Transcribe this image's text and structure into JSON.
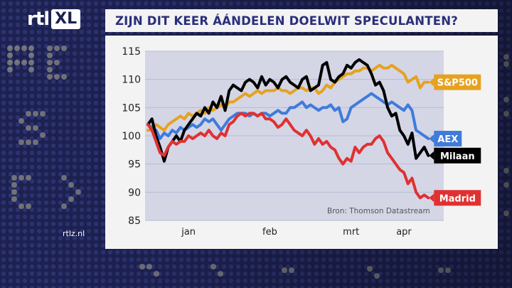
{
  "logo": {
    "text_main": "rtl",
    "text_badge": "XL"
  },
  "title": "ZIJN DIT KEER ÁÁNDELEN DOELWIT SPECULANTEN?",
  "site": "rtlz.nl",
  "colors": {
    "background": "#1d2150",
    "panel": "#f3f3f3",
    "plot": "#d4d6e6",
    "title": "#2a2e7a"
  },
  "chart_data": {
    "type": "line",
    "title": "ZIJN DIT KEER ÁÁNDELEN DOELWIT SPECULANTEN?",
    "source": "Bron: Thomson Datastream",
    "ylim": [
      85,
      115
    ],
    "yticks": [
      85,
      90,
      95,
      100,
      105,
      110,
      115
    ],
    "xlim": [
      0,
      70
    ],
    "month_labels": [
      {
        "label": "jan",
        "x": 10
      },
      {
        "label": "feb",
        "x": 30
      },
      {
        "label": "mrt",
        "x": 50
      },
      {
        "label": "apr",
        "x": 63
      }
    ],
    "grid": true,
    "series": [
      {
        "name": "S&P500",
        "color": "#e6a21f",
        "label_bg": "#e6a21f",
        "label_color": "#ffffff",
        "x": [
          0,
          1,
          2,
          3,
          4,
          5,
          6,
          7,
          8,
          9,
          10,
          11,
          12,
          13,
          14,
          15,
          16,
          17,
          18,
          19,
          20,
          21,
          22,
          23,
          24,
          25,
          26,
          27,
          28,
          29,
          30,
          31,
          32,
          33,
          34,
          35,
          36,
          37,
          38,
          39,
          40,
          41,
          42,
          43,
          44,
          45,
          46,
          47,
          48,
          49,
          50,
          51,
          52,
          53,
          54,
          55,
          56,
          57,
          58,
          59,
          60,
          61,
          62,
          63,
          64,
          65,
          66,
          67,
          68,
          69
        ],
        "y": [
          101,
          101,
          102,
          101.5,
          101,
          102,
          102.5,
          103,
          103.5,
          103,
          104,
          103.5,
          104,
          104.5,
          104,
          105,
          104.5,
          105,
          105.5,
          105,
          106,
          106,
          106.5,
          107,
          107.5,
          107,
          107.5,
          108,
          107.5,
          108,
          108,
          108,
          108.5,
          108,
          108,
          107.5,
          108,
          108.5,
          108.5,
          108,
          108.5,
          108.5,
          107.5,
          108,
          109,
          108.5,
          109.5,
          110,
          110.5,
          111,
          111,
          111.5,
          111.5,
          112,
          112,
          111.5,
          112,
          112.5,
          112,
          112,
          112.5,
          112,
          111.5,
          111,
          109.5,
          110,
          110.5,
          108.5,
          109.5,
          109.5
        ]
      },
      {
        "name": "AEX",
        "color": "#3f7bdb",
        "label_bg": "#3f7bdb",
        "label_color": "#ffffff",
        "x": [
          0,
          1,
          2,
          3,
          4,
          5,
          6,
          7,
          8,
          9,
          10,
          11,
          12,
          13,
          14,
          15,
          16,
          17,
          18,
          19,
          20,
          21,
          22,
          23,
          24,
          25,
          26,
          27,
          28,
          29,
          30,
          31,
          32,
          33,
          34,
          35,
          36,
          37,
          38,
          39,
          40,
          41,
          42,
          43,
          44,
          45,
          46,
          47,
          48,
          49,
          50,
          51,
          52,
          53,
          54,
          55,
          56,
          57,
          58,
          59,
          60,
          61,
          62,
          63,
          64,
          65,
          66,
          67,
          68,
          69
        ],
        "y": [
          102,
          101.5,
          101,
          99.5,
          100.5,
          100,
          101,
          100.5,
          101.5,
          101,
          101.5,
          102,
          101.5,
          102,
          103,
          102.5,
          103,
          102,
          101,
          102,
          103,
          103.5,
          104,
          104,
          104,
          103.5,
          104,
          103.5,
          104,
          104,
          103.5,
          104,
          104.5,
          104,
          104,
          105,
          105,
          105.5,
          106,
          105,
          105.5,
          105,
          104.5,
          105,
          105,
          105.5,
          104.5,
          105,
          102.5,
          103,
          105,
          105.5,
          106,
          106.5,
          107,
          107.5,
          107,
          106.5,
          106,
          105.5,
          106,
          105.5,
          105,
          104.5,
          105.5,
          104.5,
          101,
          100.5,
          100,
          99.5
        ]
      },
      {
        "name": "Milaan",
        "color": "#000000",
        "label_bg": "#000000",
        "label_color": "#ffffff",
        "x": [
          0,
          1,
          2,
          3,
          4,
          5,
          6,
          7,
          8,
          9,
          10,
          11,
          12,
          13,
          14,
          15,
          16,
          17,
          18,
          19,
          20,
          21,
          22,
          23,
          24,
          25,
          26,
          27,
          28,
          29,
          30,
          31,
          32,
          33,
          34,
          35,
          36,
          37,
          38,
          39,
          40,
          41,
          42,
          43,
          44,
          45,
          46,
          47,
          48,
          49,
          50,
          51,
          52,
          53,
          54,
          55,
          56,
          57,
          58,
          59,
          60,
          61,
          62,
          63,
          64,
          65,
          66,
          67,
          68,
          69
        ],
        "y": [
          102,
          103,
          100,
          98,
          95.5,
          98,
          99,
          100,
          99,
          101,
          102,
          103,
          104,
          103.5,
          105,
          104,
          106,
          105,
          107,
          104.5,
          108,
          109,
          108.5,
          108,
          109.5,
          110,
          109.5,
          108.5,
          110.5,
          109,
          110,
          109.5,
          108.5,
          110,
          110.5,
          109.5,
          109,
          108.5,
          110,
          110.5,
          108,
          108.5,
          109,
          112.5,
          113,
          110,
          109.5,
          110.5,
          111,
          112.5,
          112,
          113,
          113.5,
          113,
          112.5,
          111,
          109,
          109.5,
          108,
          105,
          103.5,
          104,
          101,
          100,
          98.5,
          100.5,
          96,
          97,
          98,
          96.5
        ]
      },
      {
        "name": "Madrid",
        "color": "#e03131",
        "label_bg": "#e03131",
        "label_color": "#ffffff",
        "x": [
          0,
          1,
          2,
          3,
          4,
          5,
          6,
          7,
          8,
          9,
          10,
          11,
          12,
          13,
          14,
          15,
          16,
          17,
          18,
          19,
          20,
          21,
          22,
          23,
          24,
          25,
          26,
          27,
          28,
          29,
          30,
          31,
          32,
          33,
          34,
          35,
          36,
          37,
          38,
          39,
          40,
          41,
          42,
          43,
          44,
          45,
          46,
          47,
          48,
          49,
          50,
          51,
          52,
          53,
          54,
          55,
          56,
          57,
          58,
          59,
          60,
          61,
          62,
          63,
          64,
          65,
          66,
          67,
          68,
          69
        ],
        "y": [
          102,
          101,
          99,
          97,
          96.5,
          98,
          99,
          98.5,
          99,
          99,
          100,
          99.5,
          100,
          100.5,
          100,
          101,
          100,
          99.5,
          100.5,
          100,
          102,
          102.5,
          103.5,
          104,
          103.5,
          104,
          104,
          103.5,
          104,
          103,
          103,
          102.5,
          101.5,
          102,
          103,
          102,
          101,
          100.5,
          100,
          101,
          100,
          98.5,
          99.5,
          98.5,
          99,
          98,
          97.5,
          96,
          95,
          96,
          95.5,
          98,
          97,
          98,
          98.5,
          98.5,
          99.5,
          100,
          99,
          97,
          96,
          95,
          94,
          93.5,
          91.5,
          92.5,
          90,
          89,
          89.5,
          89
        ]
      }
    ]
  }
}
